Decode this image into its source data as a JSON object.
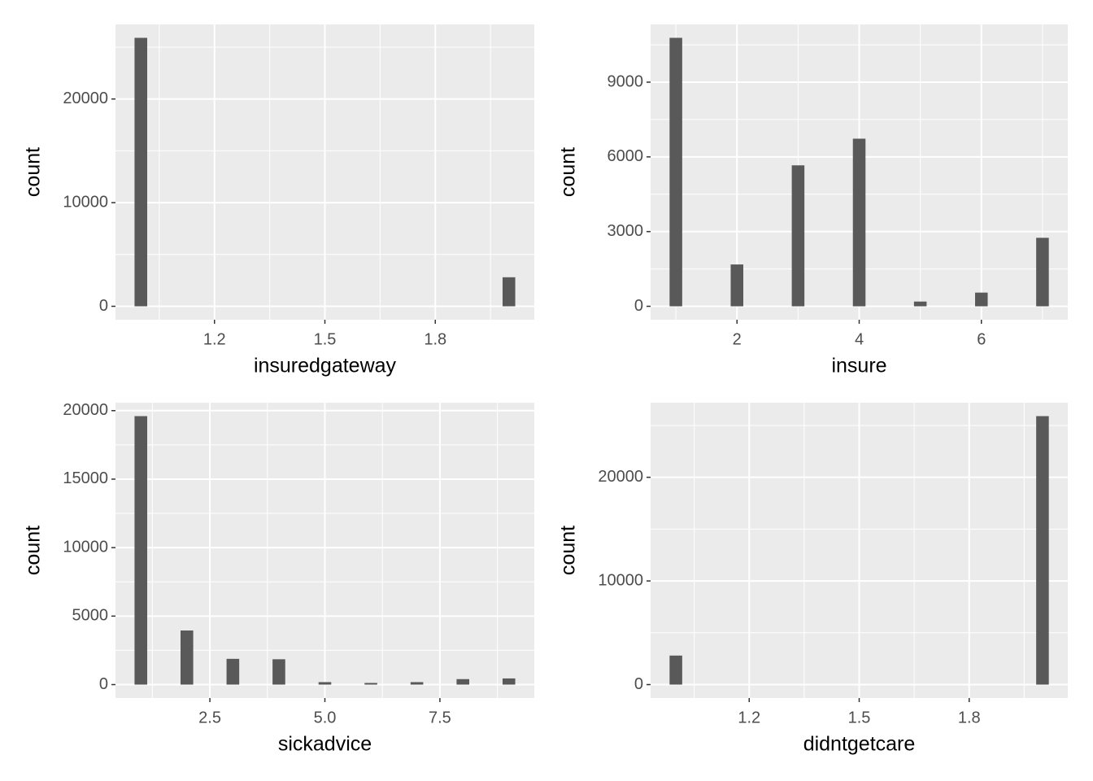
{
  "chart_data": [
    {
      "type": "bar",
      "x_label": "insuredgateway",
      "y_label": "count",
      "color": "#595959",
      "grid": true,
      "x": [
        1,
        2
      ],
      "values": [
        25900,
        2800
      ],
      "xlim": [
        0.931,
        2.069
      ],
      "ylim": [
        -1295,
        27195
      ],
      "xticks": [
        1.2,
        1.5,
        1.8
      ],
      "yticks": [
        0,
        10000,
        20000
      ]
    },
    {
      "type": "bar",
      "x_label": "insure",
      "y_label": "count",
      "color": "#595959",
      "grid": true,
      "x": [
        1,
        2,
        3,
        4,
        5,
        6,
        7
      ],
      "values": [
        10780,
        1680,
        5660,
        6730,
        190,
        550,
        2750
      ],
      "xlim": [
        0.586,
        7.414
      ],
      "ylim": [
        -539,
        11319
      ],
      "xticks": [
        2,
        4,
        6
      ],
      "yticks": [
        0,
        3000,
        6000,
        9000
      ]
    },
    {
      "type": "bar",
      "x_label": "sickadvice",
      "y_label": "count",
      "color": "#595959",
      "grid": true,
      "x": [
        1,
        2,
        3,
        4,
        5,
        6,
        7,
        8,
        9
      ],
      "values": [
        19600,
        3950,
        1880,
        1850,
        180,
        120,
        180,
        400,
        450
      ],
      "xlim": [
        0.448,
        9.552
      ],
      "ylim": [
        -980,
        20580
      ],
      "xticks": [
        2.5,
        {
          "value": 5,
          "label": "5.0"
        },
        7.5
      ],
      "yticks": [
        0,
        5000,
        10000,
        15000,
        20000
      ]
    },
    {
      "type": "bar",
      "x_label": "didntgetcare",
      "y_label": "count",
      "color": "#595959",
      "grid": true,
      "x": [
        1,
        2
      ],
      "values": [
        2800,
        25900
      ],
      "xlim": [
        0.931,
        2.069
      ],
      "ylim": [
        -1295,
        27195
      ],
      "xticks": [
        1.2,
        1.5,
        1.8
      ],
      "yticks": [
        0,
        10000,
        20000
      ]
    }
  ]
}
